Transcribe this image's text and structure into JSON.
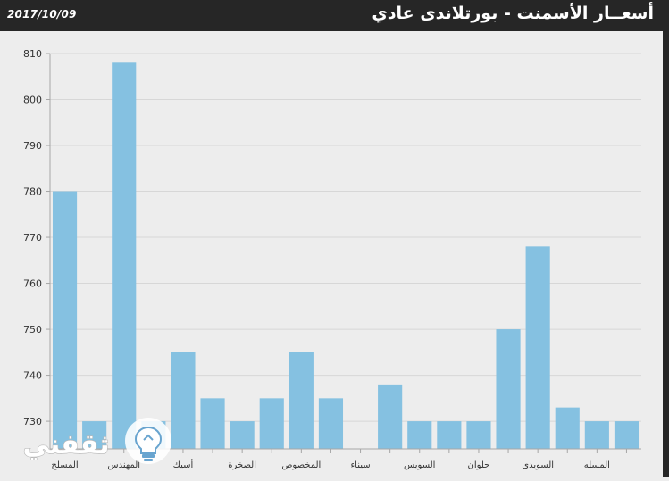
{
  "header": {
    "date": "2017/10/09",
    "title": "أسعــار الأسمنت - بورتلاندى عادي"
  },
  "watermark": {
    "text": "ثقفني",
    "icon": "lightbulb-icon"
  },
  "colors": {
    "header_bg": "#262626",
    "bar": "#85c1e1",
    "background": "#ededed"
  },
  "chart_data": {
    "type": "bar",
    "title": "",
    "xlabel": "",
    "ylabel": "",
    "ylim": [
      724,
      810
    ],
    "yticks": [
      730,
      740,
      750,
      760,
      770,
      780,
      790,
      800,
      810
    ],
    "grid": true,
    "categories": [
      "المسلح",
      "",
      "المهندس",
      "",
      "أسيك",
      "",
      "الصخرة",
      "",
      "المخصوص",
      "",
      "سيناء",
      "",
      "السويس",
      "",
      "حلوان",
      "",
      "السويدى",
      "",
      "المسله",
      ""
    ],
    "values": [
      780,
      730,
      808,
      730,
      745,
      735,
      730,
      735,
      745,
      735,
      723,
      738,
      730,
      730,
      730,
      750,
      768,
      733,
      730,
      730
    ]
  }
}
